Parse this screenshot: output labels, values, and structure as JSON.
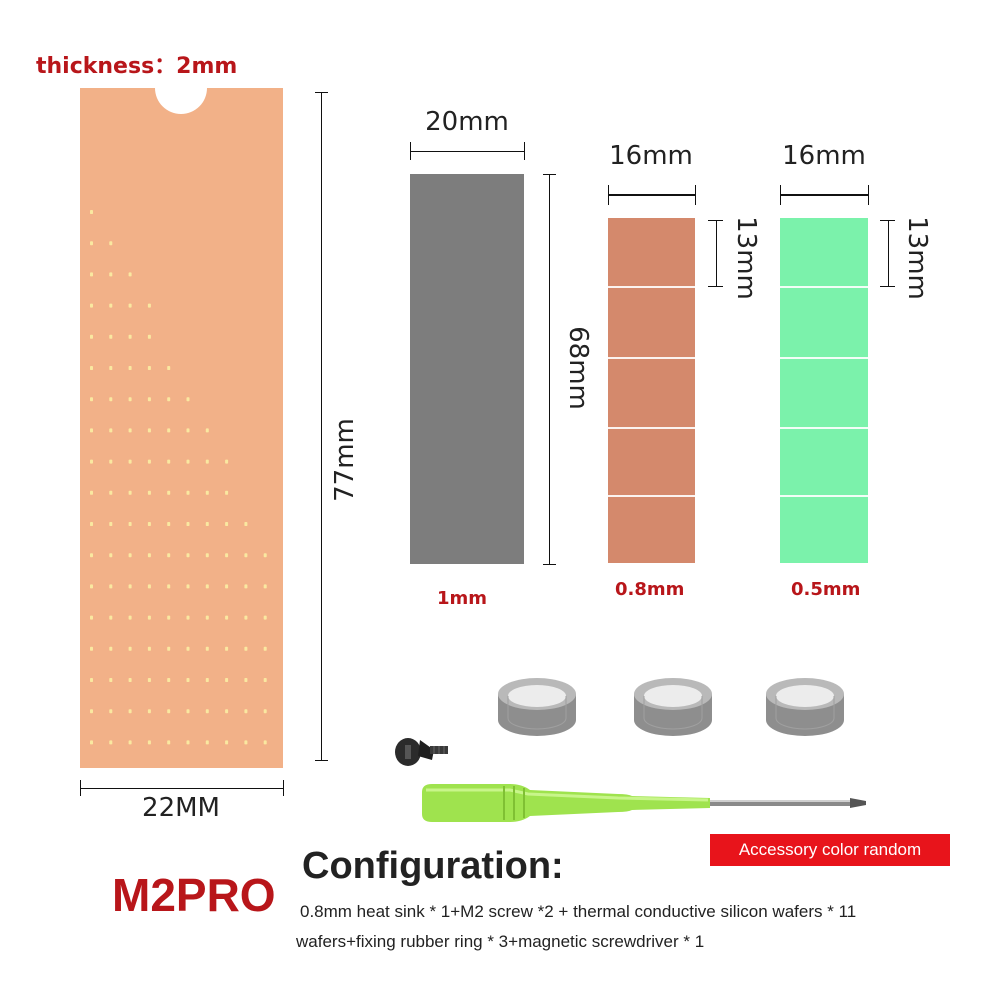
{
  "labels": {
    "thickness": "thickness：2mm",
    "length_77": "77mm",
    "width_22": "22MM",
    "width_20": "20mm",
    "width_16_copper": "16mm",
    "width_16_green": "16mm",
    "length_68": "68mm",
    "length_13_copper": "13mm",
    "length_13_green": "13mm",
    "thickness_gray": "1mm",
    "thickness_copper": "0.8mm",
    "thickness_green": "0.5mm"
  },
  "badge": "Accessory color random",
  "model": "M2PRO",
  "configuration": {
    "title": "Configuration:",
    "line1": "0.8mm heat sink * 1+M2 screw *2 + thermal conductive silicon wafers * 11",
    "line2": "wafers+fixing rubber ring * 3+magnetic screwdriver * 1"
  },
  "colors": {
    "heatsink": "#f2b188",
    "gray_pad": "#7d7d7d",
    "copper_pad": "#d4896c",
    "green_pad": "#7bf2ab",
    "accent_red": "#b8161a",
    "badge_bg": "#e8141b",
    "screwdriver_handle": "#9fe34e"
  },
  "icons": [
    "heatsink-plate",
    "rubber-ring-icon",
    "screw-icon",
    "screwdriver-icon"
  ]
}
